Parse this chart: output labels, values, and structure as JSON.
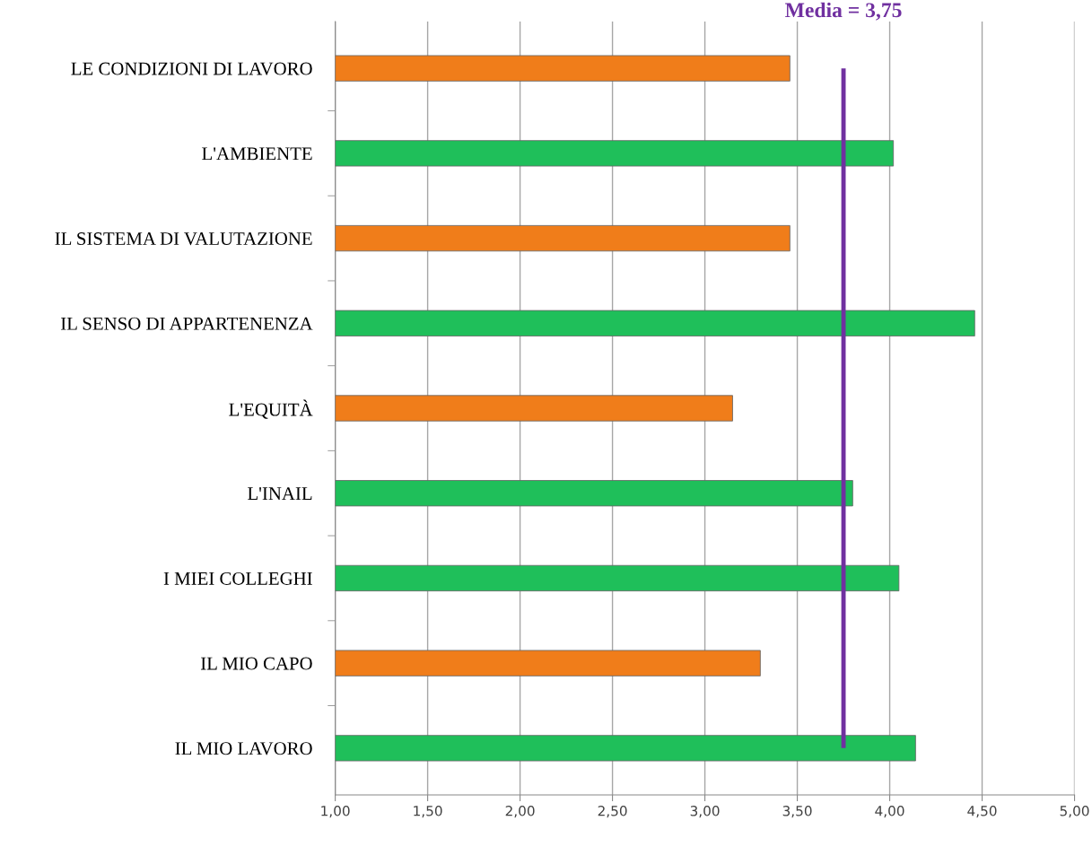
{
  "chart_data": {
    "type": "bar",
    "orientation": "horizontal",
    "categories": [
      "LE CONDIZIONI DI LAVORO",
      "L'AMBIENTE",
      "IL SISTEMA DI VALUTAZIONE",
      "IL SENSO DI APPARTENENZA",
      "L'EQUITÀ",
      "L'INAIL",
      "I MIEI COLLEGHI",
      "IL MIO CAPO",
      "IL MIO LAVORO"
    ],
    "values": [
      3.46,
      4.02,
      3.46,
      4.46,
      3.15,
      3.8,
      4.05,
      3.3,
      4.14
    ],
    "colors": [
      "#f07d1a",
      "#1fbf5a",
      "#f07d1a",
      "#1fbf5a",
      "#f07d1a",
      "#1fbf5a",
      "#1fbf5a",
      "#f07d1a",
      "#1fbf5a"
    ],
    "xlim": [
      1,
      5
    ],
    "xticks": [
      {
        "value": 1,
        "label": "1,00"
      },
      {
        "value": 1.5,
        "label": "1,50"
      },
      {
        "value": 2,
        "label": "2,00"
      },
      {
        "value": 2.5,
        "label": "2,50"
      },
      {
        "value": 3,
        "label": "3,00"
      },
      {
        "value": 3.5,
        "label": "3,50"
      },
      {
        "value": 4,
        "label": "4,00"
      },
      {
        "value": 4.5,
        "label": "4,50"
      },
      {
        "value": 5,
        "label": "5,00"
      }
    ],
    "ref_lines": [
      {
        "axis": "x",
        "value": 3.75,
        "label": "Media = 3,75",
        "color": "#7030a0"
      }
    ],
    "grid": "x",
    "legend": false
  }
}
